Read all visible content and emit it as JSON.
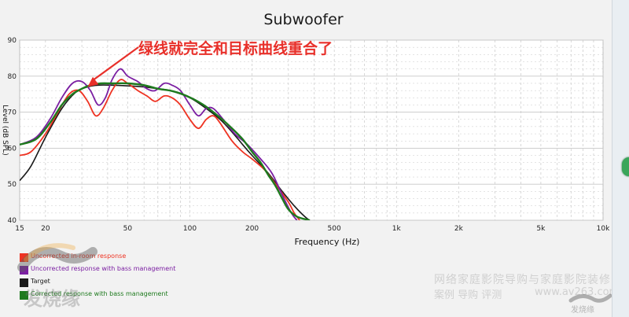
{
  "chart_data": {
    "type": "line",
    "title": "Subwoofer",
    "xlabel": "Frequency (Hz)",
    "ylabel": "Level (dB SPL)",
    "xscale": "log",
    "xlim": [
      15,
      10000
    ],
    "ylim": [
      40,
      90
    ],
    "x_ticks": [
      {
        "value": 15,
        "label": "15"
      },
      {
        "value": 20,
        "label": "20"
      },
      {
        "value": 50,
        "label": "50"
      },
      {
        "value": 100,
        "label": "100"
      },
      {
        "value": 200,
        "label": "200"
      },
      {
        "value": 500,
        "label": "500"
      },
      {
        "value": 1000,
        "label": "1k"
      },
      {
        "value": 2000,
        "label": "2k"
      },
      {
        "value": 5000,
        "label": "5k"
      },
      {
        "value": 10000,
        "label": "10k"
      }
    ],
    "y_ticks": [
      40,
      50,
      60,
      70,
      80,
      90
    ],
    "grid": true,
    "legend_position": "bottom-left",
    "annotation": {
      "text": "绿线就完全和目标曲线重合了",
      "points_to": {
        "x": 32,
        "y": 77
      },
      "color": "#e8302a"
    },
    "series": [
      {
        "name": "Uncorrected in-room response",
        "color": "#ee3322",
        "points": [
          [
            15,
            58
          ],
          [
            17,
            59
          ],
          [
            20,
            64
          ],
          [
            23,
            70
          ],
          [
            26,
            75
          ],
          [
            29,
            76
          ],
          [
            32,
            73
          ],
          [
            35,
            69
          ],
          [
            38,
            71
          ],
          [
            42,
            76
          ],
          [
            46,
            79
          ],
          [
            50,
            78
          ],
          [
            56,
            76
          ],
          [
            62,
            74.5
          ],
          [
            68,
            73
          ],
          [
            75,
            74.5
          ],
          [
            82,
            74
          ],
          [
            90,
            72
          ],
          [
            100,
            68
          ],
          [
            110,
            65.5
          ],
          [
            120,
            68
          ],
          [
            130,
            69
          ],
          [
            140,
            67
          ],
          [
            160,
            62
          ],
          [
            180,
            59
          ],
          [
            200,
            57
          ],
          [
            230,
            54
          ],
          [
            260,
            50
          ],
          [
            300,
            45
          ],
          [
            320,
            42
          ],
          [
            340,
            40
          ]
        ]
      },
      {
        "name": "Uncorrected response with bass management",
        "color": "#7b1fa2",
        "points": [
          [
            15,
            61
          ],
          [
            18,
            63
          ],
          [
            21,
            68
          ],
          [
            24,
            74
          ],
          [
            27,
            78
          ],
          [
            30,
            78.5
          ],
          [
            33,
            76
          ],
          [
            36,
            72
          ],
          [
            39,
            74
          ],
          [
            42,
            79
          ],
          [
            46,
            82
          ],
          [
            50,
            80
          ],
          [
            56,
            78.5
          ],
          [
            62,
            76.5
          ],
          [
            68,
            76
          ],
          [
            75,
            78
          ],
          [
            82,
            77.5
          ],
          [
            90,
            76
          ],
          [
            100,
            72
          ],
          [
            110,
            69
          ],
          [
            120,
            71
          ],
          [
            130,
            71
          ],
          [
            145,
            68
          ],
          [
            165,
            64
          ],
          [
            190,
            61
          ],
          [
            220,
            57
          ],
          [
            250,
            53
          ],
          [
            280,
            47
          ],
          [
            310,
            42
          ],
          [
            330,
            40
          ]
        ]
      },
      {
        "name": "Target",
        "color": "#1a1a1a",
        "points": [
          [
            15,
            51
          ],
          [
            17,
            55
          ],
          [
            20,
            63
          ],
          [
            24,
            71
          ],
          [
            28,
            75.5
          ],
          [
            32,
            77
          ],
          [
            36,
            77.5
          ],
          [
            42,
            77.5
          ],
          [
            50,
            77.3
          ],
          [
            60,
            77
          ],
          [
            70,
            76.5
          ],
          [
            80,
            76
          ],
          [
            100,
            74
          ],
          [
            120,
            71
          ],
          [
            140,
            68
          ],
          [
            160,
            64.5
          ],
          [
            180,
            61
          ],
          [
            200,
            58
          ],
          [
            240,
            53
          ],
          [
            280,
            48
          ],
          [
            320,
            44
          ],
          [
            360,
            41
          ],
          [
            400,
            39
          ]
        ]
      },
      {
        "name": "Corrected response with bass management",
        "color": "#1e7a1e",
        "points": [
          [
            15,
            61
          ],
          [
            18,
            62.5
          ],
          [
            21,
            67
          ],
          [
            24,
            72
          ],
          [
            27,
            75
          ],
          [
            30,
            76.5
          ],
          [
            33,
            77.5
          ],
          [
            37,
            78
          ],
          [
            42,
            78
          ],
          [
            50,
            78
          ],
          [
            60,
            77.5
          ],
          [
            70,
            76.5
          ],
          [
            80,
            76
          ],
          [
            92,
            75
          ],
          [
            105,
            73.5
          ],
          [
            120,
            71.5
          ],
          [
            140,
            68.5
          ],
          [
            160,
            65.5
          ],
          [
            180,
            62.5
          ],
          [
            200,
            59
          ],
          [
            220,
            56
          ],
          [
            240,
            52.5
          ],
          [
            260,
            49.5
          ],
          [
            280,
            46
          ],
          [
            300,
            43
          ],
          [
            330,
            41
          ],
          [
            380,
            40
          ]
        ]
      }
    ]
  },
  "watermark": {
    "line1": "网络家庭影院导购与家庭影院装修网",
    "line2": "案例  导购  评测",
    "line3": "www.av263.com",
    "logo_left": "发烧缘",
    "logo_right": "发烧缘"
  },
  "colors": {
    "plot_background": "#ffffff",
    "grid": "#c8c8c8",
    "annotation": "#e8302a"
  }
}
